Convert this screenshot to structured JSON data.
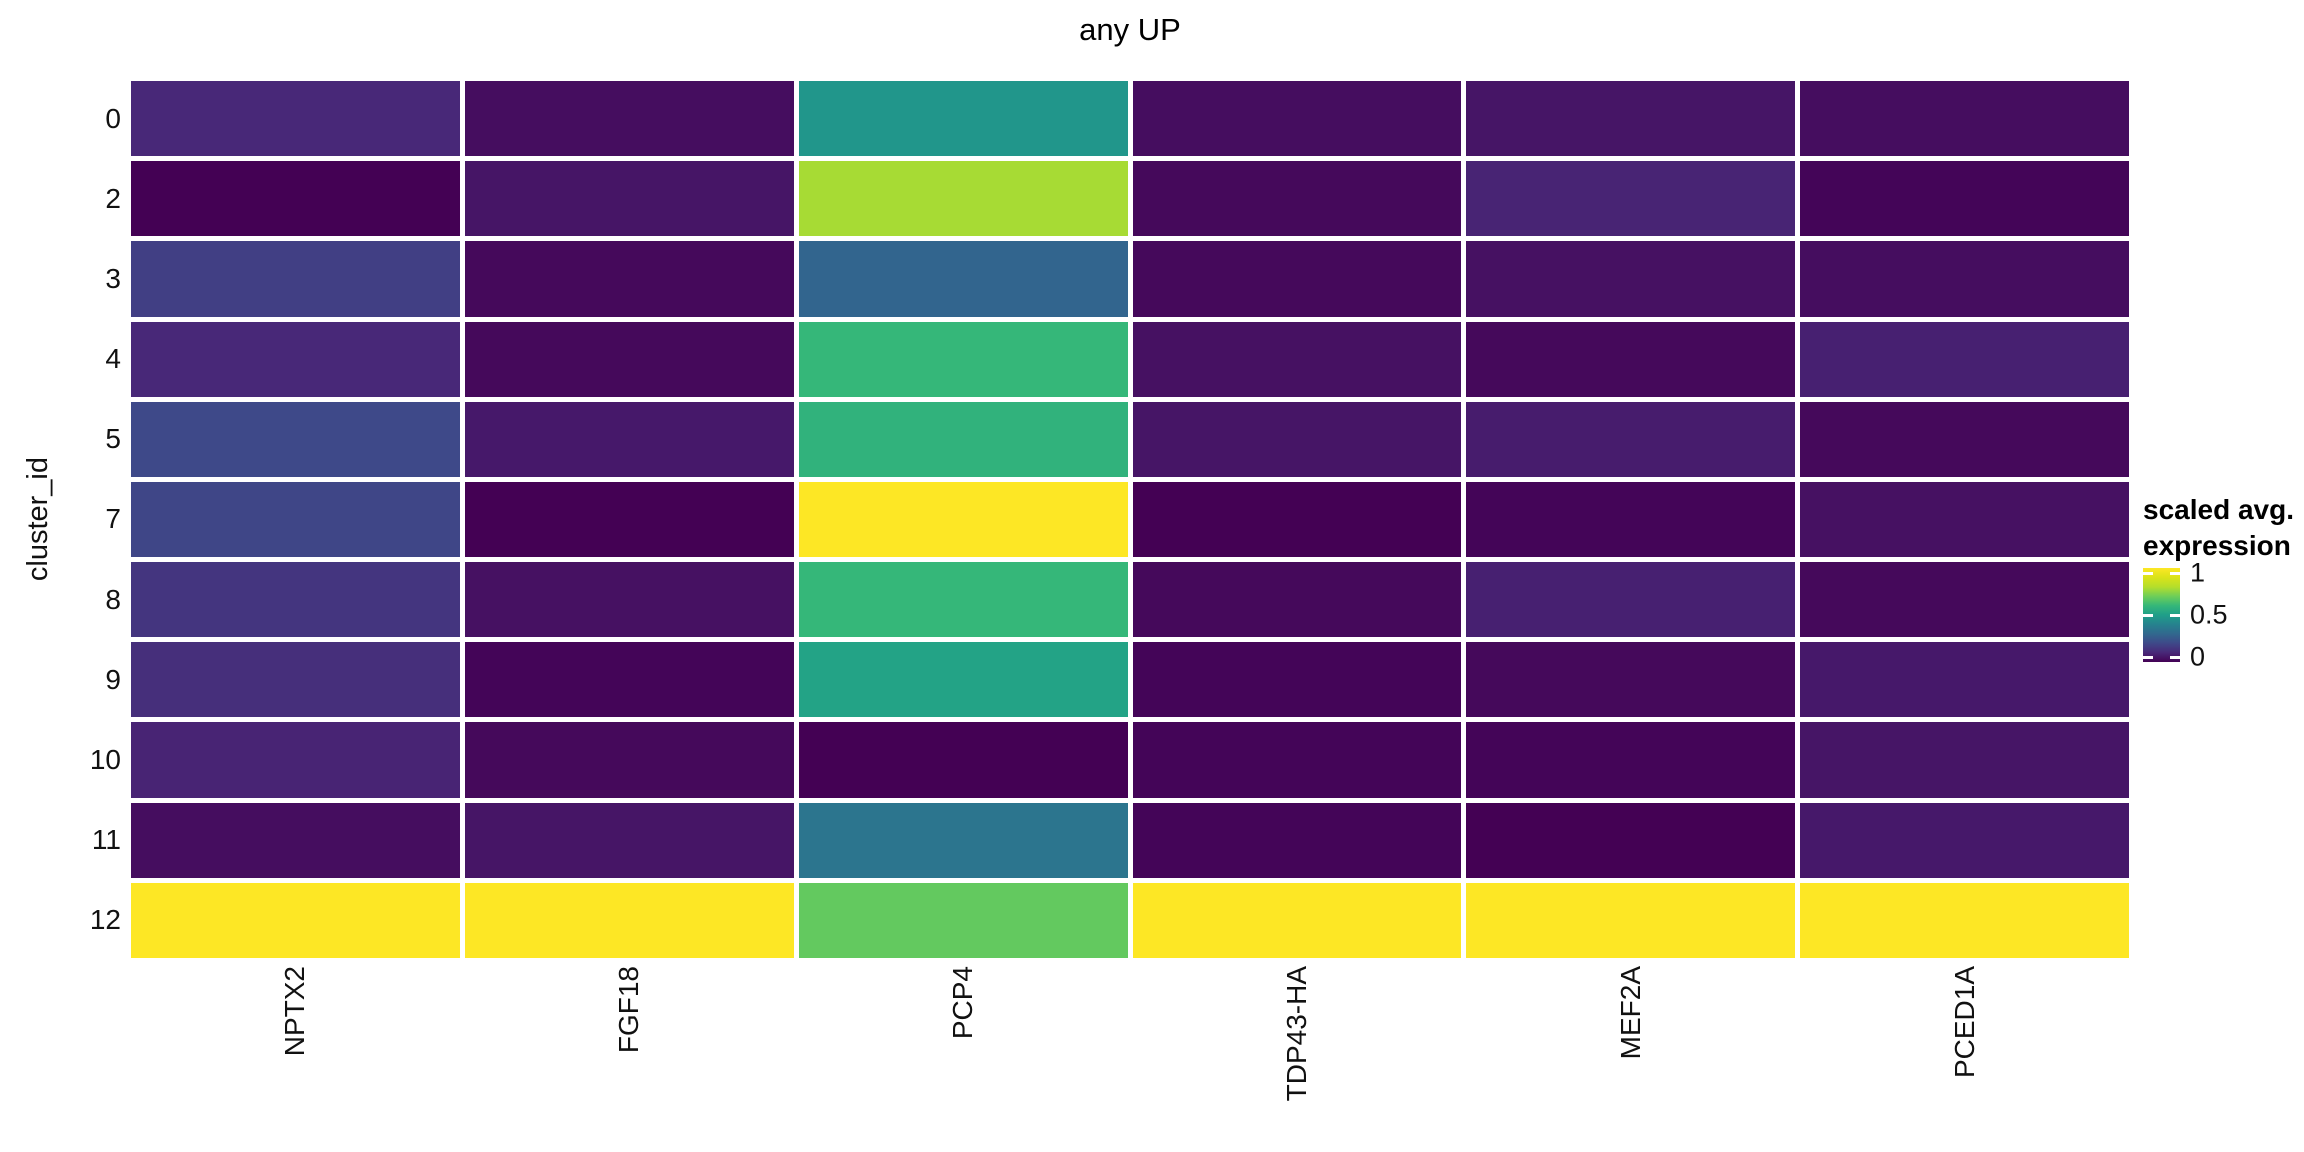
{
  "title": "any UP",
  "axes": {
    "y_title": "cluster_id",
    "y_ticks": [
      "0",
      "2",
      "3",
      "4",
      "5",
      "7",
      "8",
      "9",
      "10",
      "11",
      "12"
    ],
    "x_ticks": [
      "NPTX2",
      "FGF18",
      "PCP4",
      "TDP43-HA",
      "MEF2A",
      "PCED1A"
    ]
  },
  "legend": {
    "title_line1": "scaled avg.",
    "title_line2": "expression",
    "tick_labels": [
      "1",
      "0.5",
      "0"
    ],
    "tick_values": [
      1,
      0.5,
      0
    ]
  },
  "colors": {
    "background": "#ffffff",
    "text": "#111111",
    "viridis_anchors": [
      "#440154",
      "#482878",
      "#3e4989",
      "#31688e",
      "#26828e",
      "#1f9e89",
      "#35b779",
      "#6ece58",
      "#b5de2b",
      "#dae319",
      "#fde725"
    ]
  },
  "chart_data": {
    "type": "heatmap",
    "title": "any UP",
    "ylabel": "cluster_id",
    "xlabel": "",
    "categories_x": [
      "NPTX2",
      "FGF18",
      "PCP4",
      "TDP43-HA",
      "MEF2A",
      "PCED1A"
    ],
    "categories_y": [
      "0",
      "2",
      "3",
      "4",
      "5",
      "7",
      "8",
      "9",
      "10",
      "11",
      "12"
    ],
    "values": [
      [
        0.1,
        0.03,
        0.47,
        0.03,
        0.05,
        0.03
      ],
      [
        0.0,
        0.05,
        0.78,
        0.02,
        0.09,
        0.01
      ],
      [
        0.17,
        0.02,
        0.29,
        0.02,
        0.04,
        0.03
      ],
      [
        0.1,
        0.02,
        0.6,
        0.04,
        0.02,
        0.08
      ],
      [
        0.2,
        0.06,
        0.58,
        0.05,
        0.07,
        0.02
      ],
      [
        0.19,
        0.0,
        1.0,
        0.0,
        0.01,
        0.04
      ],
      [
        0.14,
        0.04,
        0.6,
        0.02,
        0.08,
        0.02
      ],
      [
        0.12,
        0.01,
        0.52,
        0.01,
        0.02,
        0.06
      ],
      [
        0.09,
        0.02,
        0.0,
        0.01,
        0.01,
        0.05
      ],
      [
        0.03,
        0.05,
        0.35,
        0.01,
        0.0,
        0.06
      ],
      [
        1.0,
        1.0,
        0.68,
        1.0,
        1.0,
        1.0
      ]
    ],
    "value_range": [
      0,
      1
    ],
    "colormap": "viridis",
    "legend_title": "scaled avg. expression",
    "legend_ticks": [
      1,
      0.5,
      0
    ],
    "grid": false,
    "legend_position": "right"
  }
}
